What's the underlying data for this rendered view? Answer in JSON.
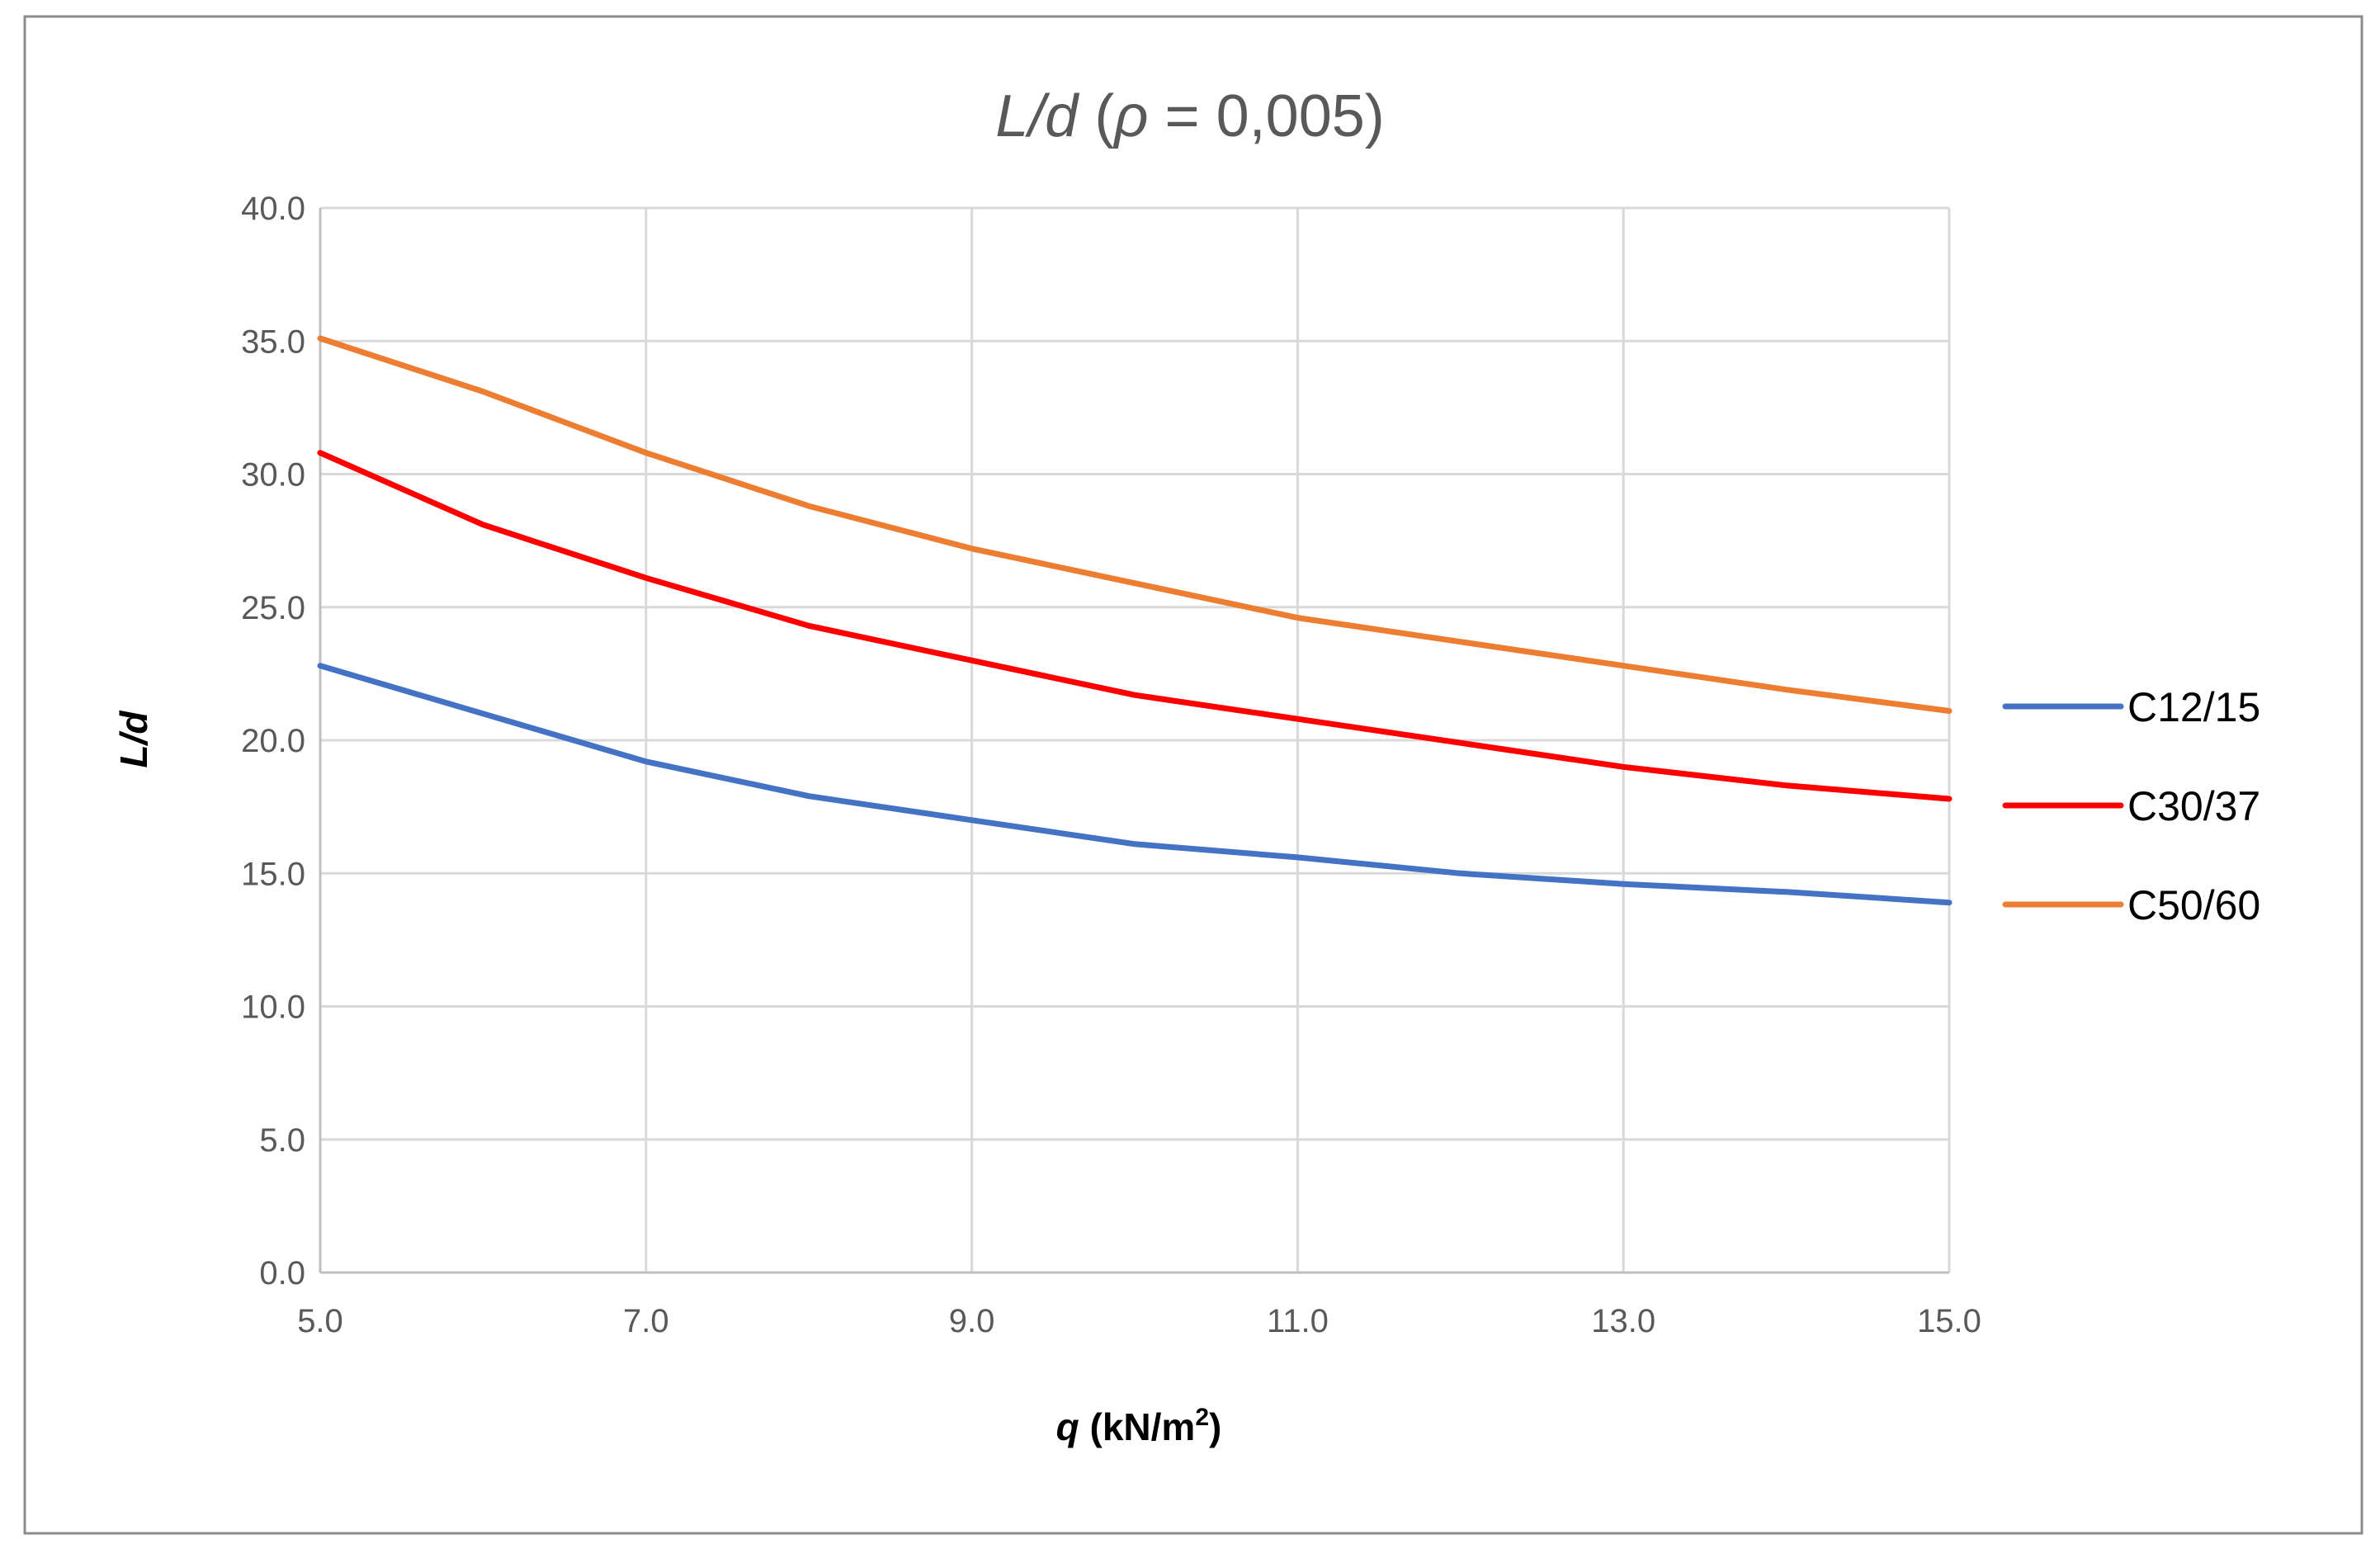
{
  "chart_data": {
    "type": "line",
    "title": {
      "part1": "L/d",
      "part2": " (",
      "part3": "ρ",
      "part4": " = 0,005)"
    },
    "xlabel": {
      "italic": "q",
      "unit": " (kN/m",
      "sup": "2",
      "close": ")"
    },
    "ylabel": "L/d",
    "xlim": [
      5,
      15
    ],
    "ylim": [
      0,
      40
    ],
    "xticks": [
      "5.0",
      "7.0",
      "9.0",
      "11.0",
      "13.0",
      "15.0"
    ],
    "xtick_values": [
      5,
      7,
      9,
      11,
      13,
      15
    ],
    "yticks": [
      "0.0",
      "5.0",
      "10.0",
      "15.0",
      "20.0",
      "25.0",
      "30.0",
      "35.0",
      "40.0"
    ],
    "ytick_values": [
      0,
      5,
      10,
      15,
      20,
      25,
      30,
      35,
      40
    ],
    "x": [
      5,
      6,
      7,
      8,
      9,
      10,
      11,
      12,
      13,
      14,
      15
    ],
    "series": [
      {
        "name": "C12/15",
        "color": "#4472c4",
        "values": [
          22.8,
          21.0,
          19.2,
          17.9,
          17.0,
          16.1,
          15.6,
          15.0,
          14.6,
          14.3,
          13.9
        ]
      },
      {
        "name": "C30/37",
        "color": "#ff0000",
        "values": [
          30.8,
          28.1,
          26.1,
          24.3,
          23.0,
          21.7,
          20.8,
          19.9,
          19.0,
          18.3,
          17.8
        ]
      },
      {
        "name": "C50/60",
        "color": "#ed7d31",
        "values": [
          35.1,
          33.1,
          30.8,
          28.8,
          27.2,
          25.9,
          24.6,
          23.7,
          22.8,
          21.9,
          21.1
        ]
      }
    ],
    "grid": true,
    "legend_position": "right"
  }
}
